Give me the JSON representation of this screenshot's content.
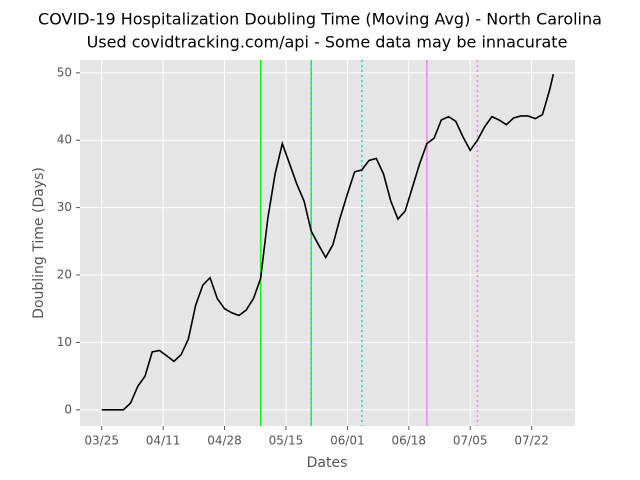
{
  "chart_data": {
    "type": "line",
    "title": "COVID-19 Hospitalization Doubling Time (Moving Avg) - North Carolina",
    "subtitle": "Used covidtracking.com/api - Some data may be innacurate",
    "xlabel": "Dates",
    "ylabel": "Doubling Time (Days)",
    "x": [
      "03/25",
      "03/27",
      "03/29",
      "03/31",
      "04/02",
      "04/04",
      "04/06",
      "04/08",
      "04/10",
      "04/12",
      "04/14",
      "04/16",
      "04/18",
      "04/20",
      "04/22",
      "04/24",
      "04/26",
      "04/28",
      "04/30",
      "05/02",
      "05/04",
      "05/06",
      "05/08",
      "05/10",
      "05/12",
      "05/14",
      "05/16",
      "05/18",
      "05/20",
      "05/22",
      "05/24",
      "05/26",
      "05/28",
      "05/30",
      "06/01",
      "06/03",
      "06/05",
      "06/07",
      "06/09",
      "06/11",
      "06/13",
      "06/15",
      "06/17",
      "06/19",
      "06/21",
      "06/23",
      "06/25",
      "06/27",
      "06/29",
      "07/01",
      "07/03",
      "07/05",
      "07/07",
      "07/09",
      "07/11",
      "07/13",
      "07/15",
      "07/17",
      "07/19",
      "07/21",
      "07/23",
      "07/25",
      "07/27",
      "07/28"
    ],
    "series": [
      {
        "name": "Doubling Time",
        "color": "#000000",
        "values": [
          0,
          0,
          0,
          0,
          1,
          3.5,
          5,
          8.6,
          8.8,
          8.0,
          7.2,
          8.2,
          10.5,
          15.5,
          18.5,
          19.6,
          16.5,
          15,
          14.4,
          14.0,
          14.8,
          16.5,
          19.5,
          28.5,
          35,
          39.5,
          36.5,
          33.5,
          31,
          26.5,
          24.5,
          22.6,
          24.5,
          28.5,
          32,
          35.3,
          35.6,
          37,
          37.3,
          35,
          31,
          28.3,
          29.5,
          33,
          36.5,
          39.5,
          40.3,
          43,
          43.5,
          42.8,
          40.5,
          38.5,
          40,
          42,
          43.5,
          43.0,
          42.3,
          43.3,
          43.6,
          43.6,
          43.2,
          43.8,
          47.5,
          49.8
        ]
      }
    ],
    "vlines": [
      {
        "x": "05/08",
        "color": "#00ff00",
        "style": "solid"
      },
      {
        "x": "05/22",
        "color": "#00ff00",
        "style": "solid"
      },
      {
        "x": "05/22",
        "color": "#00e5e5",
        "style": "dotted"
      },
      {
        "x": "06/05",
        "color": "#00e5d0",
        "style": "dotted"
      },
      {
        "x": "06/23",
        "color": "#ee82ee",
        "style": "solid"
      },
      {
        "x": "07/07",
        "color": "#ee82ee",
        "style": "dotted"
      }
    ],
    "xlim": [
      "03/19",
      "08/03"
    ],
    "xticks": [
      "03/25",
      "04/11",
      "04/28",
      "05/15",
      "06/01",
      "06/18",
      "07/05",
      "07/22"
    ],
    "ylim": [
      -2.4,
      51.9
    ],
    "yticks": [
      0,
      10,
      20,
      30,
      40,
      50
    ],
    "grid": true
  }
}
